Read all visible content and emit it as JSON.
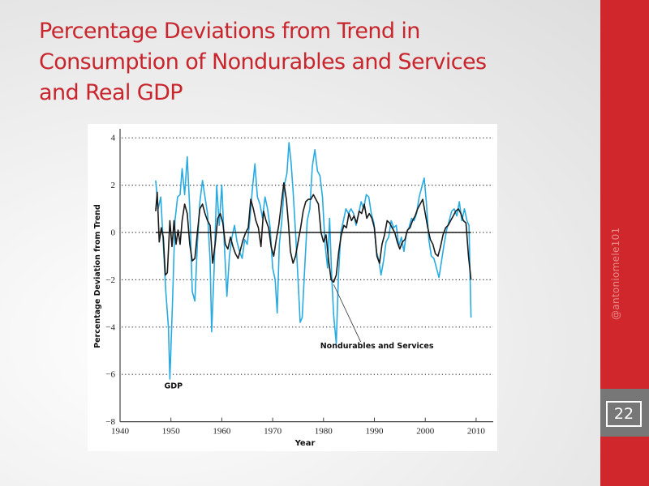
{
  "slide": {
    "title": "Percentage Deviations from Trend in Consumption of Nondurables and Services and Real GDP",
    "title_lines": [
      "Percentage Deviations from Trend in",
      "Consumption of Nondurables and Services",
      "and Real GDP"
    ],
    "handle": "@antoniomele101",
    "page_number": "22",
    "colors": {
      "title": "#c9252c",
      "sidebar": "#d0272d",
      "page_band": "#777777",
      "gdp_series": "#29abe2",
      "consumption_series": "#1a1a1a"
    }
  },
  "chart_data": {
    "type": "line",
    "title": "",
    "xlabel": "Year",
    "ylabel": "Percentage Deviation from Trend",
    "xlim": [
      1940,
      2012
    ],
    "ylim": [
      -8,
      4.3
    ],
    "xticks": [
      1940,
      1950,
      1960,
      1970,
      1980,
      1990,
      2000,
      2010
    ],
    "xtick_labels": [
      "1940",
      "1950",
      "1960",
      "1970",
      "1980",
      "1990",
      "2000",
      "2010"
    ],
    "yticks": [
      4,
      2,
      0,
      -2,
      -4,
      -6,
      -8
    ],
    "ytick_labels": [
      "4",
      "2",
      "0",
      "−2",
      "−4",
      "−6",
      "−8"
    ],
    "grid": "horizontal dotted at y ticks",
    "zero_line": true,
    "annotations": [
      {
        "text": "GDP",
        "x": 1950.5,
        "y": -6.6
      },
      {
        "text": "Nondurables and Services",
        "x": 1990.5,
        "y": -4.9,
        "arrow_to": {
          "x": 1982.0,
          "y": -2.2
        }
      }
    ],
    "series": [
      {
        "name": "GDP",
        "x": [
          1947.0,
          1947.5,
          1948.0,
          1948.5,
          1949.0,
          1949.5,
          1949.8,
          1950.3,
          1950.8,
          1951.3,
          1951.8,
          1952.2,
          1952.7,
          1953.2,
          1953.7,
          1954.2,
          1954.7,
          1955.2,
          1955.7,
          1956.2,
          1956.7,
          1957.2,
          1957.7,
          1958.0,
          1958.5,
          1959.0,
          1959.5,
          1960.0,
          1960.5,
          1961.0,
          1961.5,
          1962.0,
          1962.5,
          1963.0,
          1963.5,
          1964.0,
          1964.5,
          1965.0,
          1965.5,
          1966.0,
          1966.5,
          1967.0,
          1967.5,
          1968.0,
          1968.5,
          1969.0,
          1969.5,
          1970.0,
          1970.5,
          1970.9,
          1971.3,
          1971.8,
          1972.3,
          1972.8,
          1973.2,
          1973.6,
          1974.0,
          1974.5,
          1975.0,
          1975.4,
          1975.8,
          1976.3,
          1976.8,
          1977.3,
          1977.8,
          1978.3,
          1978.8,
          1979.3,
          1979.8,
          1980.3,
          1980.8,
          1981.2,
          1981.6,
          1982.0,
          1982.5,
          1982.9,
          1983.4,
          1983.9,
          1984.4,
          1984.9,
          1985.4,
          1985.9,
          1986.4,
          1986.9,
          1987.4,
          1987.9,
          1988.4,
          1988.9,
          1989.4,
          1989.9,
          1990.4,
          1990.9,
          1991.3,
          1991.8,
          1992.3,
          1992.8,
          1993.3,
          1993.8,
          1994.3,
          1994.8,
          1995.3,
          1995.8,
          1996.3,
          1996.8,
          1997.3,
          1997.8,
          1998.3,
          1998.8,
          1999.3,
          1999.8,
          2000.2,
          2000.7,
          2001.2,
          2001.7,
          2002.2,
          2002.7,
          2003.2,
          2003.7,
          2004.2,
          2004.7,
          2005.2,
          2005.7,
          2006.2,
          2006.7,
          2007.2,
          2007.7,
          2008.2,
          2008.6,
          2009.0
        ],
        "y": [
          2.2,
          1.0,
          1.5,
          -0.5,
          -2.5,
          -4.0,
          -6.2,
          -3.0,
          0.5,
          1.5,
          1.6,
          2.7,
          1.6,
          3.2,
          1.0,
          -2.5,
          -2.9,
          -0.5,
          1.3,
          2.2,
          1.5,
          0.8,
          -1.2,
          -4.2,
          -1.5,
          2.0,
          0.3,
          2.0,
          -0.5,
          -2.7,
          -1.0,
          -0.2,
          0.3,
          -0.4,
          -0.8,
          -1.1,
          -0.3,
          -0.5,
          0.5,
          1.8,
          2.9,
          1.5,
          1.2,
          0.6,
          1.5,
          1.0,
          0.2,
          -1.5,
          -2.0,
          -3.4,
          -0.5,
          0.5,
          2.0,
          2.5,
          3.8,
          3.0,
          1.8,
          0.0,
          -2.0,
          -3.8,
          -3.6,
          -1.5,
          0.5,
          1.0,
          2.8,
          3.5,
          2.6,
          2.4,
          1.5,
          -0.5,
          -1.5,
          0.6,
          -1.8,
          -3.5,
          -4.7,
          -2.0,
          0.0,
          0.5,
          1.0,
          0.8,
          1.0,
          0.8,
          0.3,
          0.8,
          1.3,
          1.0,
          1.6,
          1.5,
          0.8,
          0.4,
          -0.8,
          -1.2,
          -1.8,
          -1.2,
          -0.4,
          -0.2,
          0.5,
          0.2,
          0.3,
          -0.6,
          -0.2,
          -0.8,
          0.0,
          0.2,
          0.6,
          0.5,
          0.8,
          1.5,
          1.9,
          2.3,
          1.3,
          -0.3,
          -1.0,
          -1.1,
          -1.5,
          -1.9,
          -1.2,
          -0.5,
          0.1,
          0.5,
          0.9,
          1.0,
          0.7,
          1.3,
          0.5,
          1.0,
          0.5,
          0.3,
          -3.6
        ],
        "color": "#29abe2"
      },
      {
        "name": "Nondurables and Services",
        "x": [
          1947.0,
          1947.3,
          1947.7,
          1948.1,
          1948.5,
          1948.9,
          1949.3,
          1949.8,
          1950.2,
          1950.6,
          1951.0,
          1951.4,
          1951.8,
          1952.2,
          1952.7,
          1953.2,
          1953.7,
          1954.2,
          1954.7,
          1955.2,
          1955.7,
          1956.2,
          1956.7,
          1957.2,
          1957.7,
          1958.2,
          1958.7,
          1959.2,
          1959.7,
          1960.2,
          1960.7,
          1961.2,
          1961.7,
          1962.2,
          1962.7,
          1963.2,
          1963.7,
          1964.2,
          1964.7,
          1965.2,
          1965.7,
          1966.2,
          1966.7,
          1967.2,
          1967.7,
          1968.2,
          1968.7,
          1969.2,
          1969.7,
          1970.2,
          1970.7,
          1971.2,
          1971.7,
          1972.2,
          1972.7,
          1973.1,
          1973.5,
          1974.0,
          1974.5,
          1975.0,
          1975.5,
          1976.0,
          1976.5,
          1977.0,
          1977.5,
          1978.0,
          1978.5,
          1979.0,
          1979.5,
          1980.0,
          1980.5,
          1981.0,
          1981.5,
          1982.0,
          1982.5,
          1983.0,
          1983.5,
          1984.0,
          1984.5,
          1985.0,
          1985.5,
          1986.0,
          1986.5,
          1987.0,
          1987.5,
          1988.0,
          1988.5,
          1989.0,
          1989.5,
          1990.0,
          1990.5,
          1991.0,
          1991.5,
          1992.0,
          1992.5,
          1993.0,
          1993.5,
          1994.0,
          1994.5,
          1995.0,
          1995.5,
          1996.0,
          1996.5,
          1997.0,
          1997.5,
          1998.0,
          1998.5,
          1999.0,
          1999.5,
          2000.0,
          2000.5,
          2001.0,
          2001.5,
          2002.0,
          2002.5,
          2003.0,
          2003.5,
          2004.0,
          2004.5,
          2005.0,
          2005.5,
          2006.0,
          2006.5,
          2007.0,
          2007.5,
          2008.0,
          2008.5,
          2009.0
        ],
        "y": [
          0.9,
          1.7,
          -0.4,
          0.2,
          -0.2,
          -1.8,
          -1.7,
          0.5,
          -0.6,
          0.5,
          -0.5,
          0.1,
          -0.5,
          0.5,
          1.2,
          0.8,
          -0.5,
          -1.2,
          -1.1,
          0.0,
          1.0,
          1.2,
          0.8,
          0.5,
          0.3,
          -1.3,
          -0.5,
          0.6,
          0.8,
          0.4,
          -0.5,
          -0.7,
          -0.2,
          -0.6,
          -0.9,
          -1.1,
          -0.7,
          -0.3,
          0.0,
          0.2,
          1.4,
          1.0,
          0.5,
          0.2,
          -0.6,
          0.9,
          0.5,
          0.2,
          -0.6,
          -1.0,
          -0.3,
          0.3,
          1.2,
          2.1,
          1.4,
          0.4,
          -0.8,
          -1.3,
          -1.0,
          -0.4,
          0.2,
          0.9,
          1.3,
          1.4,
          1.4,
          1.6,
          1.4,
          1.2,
          0.0,
          -0.4,
          -0.1,
          -1.2,
          -2.0,
          -2.1,
          -1.8,
          -0.8,
          -0.1,
          0.3,
          0.2,
          0.8,
          0.5,
          0.7,
          0.4,
          0.9,
          0.8,
          1.2,
          0.6,
          0.8,
          0.6,
          0.2,
          -1.0,
          -1.3,
          -0.5,
          -0.1,
          0.5,
          0.4,
          0.2,
          0.0,
          -0.4,
          -0.7,
          -0.4,
          -0.3,
          0.1,
          0.2,
          0.5,
          0.7,
          1.0,
          1.2,
          1.4,
          0.8,
          0.2,
          -0.3,
          -0.5,
          -0.9,
          -1.0,
          -0.6,
          -0.1,
          0.2,
          0.3,
          0.5,
          0.7,
          0.9,
          1.0,
          0.8,
          0.5,
          0.4,
          -1.0,
          -2.0
        ],
        "color": "#1a1a1a"
      }
    ]
  }
}
